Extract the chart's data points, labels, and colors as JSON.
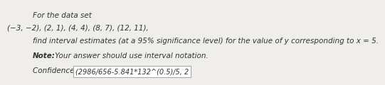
{
  "line1": "For the data set",
  "line2": "(−3, −2), (2, 1), (4, 4), (8, 7), (12, 11),",
  "line3": "find interval estimates (at a 95% significance level) for the value of y corresponding to x = 5.",
  "note_bold": "Note:",
  "note_rest": " Your answer should use interval notation.",
  "label_bold": "Confidence Interval = ",
  "box_text": "(2986/656-5.841*132^(0.5)/5, 2",
  "bg_color": "#f0eeeb",
  "box_bg": "#ffffff",
  "box_border": "#aaaaaa",
  "text_color": "#333333",
  "font_size_main": 7.5
}
